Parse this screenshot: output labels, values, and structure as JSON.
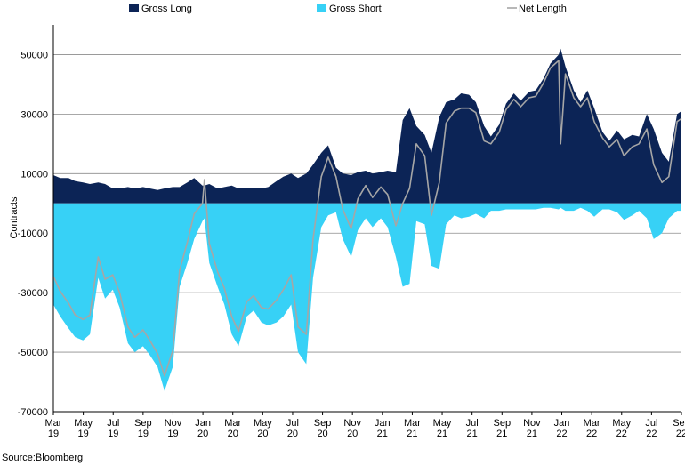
{
  "chart_data": {
    "type": "area",
    "ylabel": "Contracts",
    "ylim": [
      -70000,
      60000
    ],
    "y_ticks": [
      "50000",
      "30000",
      "10000",
      "-10000",
      "-30000",
      "-50000",
      "-70000"
    ],
    "x_tick_labels": [
      [
        "Mar",
        "19"
      ],
      [
        "May",
        "19"
      ],
      [
        "Jul",
        "19"
      ],
      [
        "Sep",
        "19"
      ],
      [
        "Nov",
        "19"
      ],
      [
        "Jan",
        "20"
      ],
      [
        "Mar",
        "20"
      ],
      [
        "May",
        "20"
      ],
      [
        "Jul",
        "20"
      ],
      [
        "Sep",
        "20"
      ],
      [
        "Nov",
        "20"
      ],
      [
        "Jan",
        "21"
      ],
      [
        "Mar",
        "21"
      ],
      [
        "May",
        "21"
      ],
      [
        "Jul",
        "21"
      ],
      [
        "Sep",
        "21"
      ],
      [
        "Nov",
        "21"
      ],
      [
        "Jan",
        "22"
      ],
      [
        "Mar",
        "22"
      ],
      [
        "May",
        "22"
      ],
      [
        "Jul",
        "22"
      ],
      [
        "Sep",
        "22"
      ]
    ],
    "x": [
      "2019-03-01",
      "2019-03-15",
      "2019-04-01",
      "2019-04-15",
      "2019-05-01",
      "2019-05-15",
      "2019-06-01",
      "2019-06-15",
      "2019-07-01",
      "2019-07-15",
      "2019-08-01",
      "2019-08-15",
      "2019-09-01",
      "2019-09-15",
      "2019-10-01",
      "2019-10-15",
      "2019-11-01",
      "2019-11-15",
      "2019-12-01",
      "2019-12-15",
      "2020-01-01",
      "2020-01-05",
      "2020-01-15",
      "2020-02-01",
      "2020-02-15",
      "2020-03-01",
      "2020-03-15",
      "2020-04-01",
      "2020-04-15",
      "2020-05-01",
      "2020-05-15",
      "2020-06-01",
      "2020-06-15",
      "2020-07-01",
      "2020-07-15",
      "2020-08-01",
      "2020-08-15",
      "2020-09-01",
      "2020-09-15",
      "2020-10-01",
      "2020-10-15",
      "2020-11-01",
      "2020-11-15",
      "2020-12-01",
      "2020-12-15",
      "2021-01-01",
      "2021-01-15",
      "2021-02-01",
      "2021-02-15",
      "2021-03-01",
      "2021-03-15",
      "2021-04-01",
      "2021-04-15",
      "2021-05-01",
      "2021-05-15",
      "2021-06-01",
      "2021-06-15",
      "2021-07-01",
      "2021-07-15",
      "2021-08-01",
      "2021-08-15",
      "2021-09-01",
      "2021-09-15",
      "2021-10-01",
      "2021-10-15",
      "2021-11-01",
      "2021-11-15",
      "2021-12-01",
      "2021-12-15",
      "2022-01-01",
      "2022-01-05",
      "2022-01-15",
      "2022-02-01",
      "2022-02-15",
      "2022-03-01",
      "2022-03-15",
      "2022-04-01",
      "2022-04-15",
      "2022-05-01",
      "2022-05-15",
      "2022-06-01",
      "2022-06-15",
      "2022-07-01",
      "2022-07-15",
      "2022-08-01",
      "2022-08-15",
      "2022-09-01",
      "2022-09-10"
    ],
    "series": [
      {
        "name": "Gross Long",
        "color": "#0c2456",
        "values": [
          9500,
          8500,
          8500,
          7500,
          7000,
          6500,
          7000,
          6500,
          5000,
          5000,
          5500,
          5000,
          5500,
          5000,
          4500,
          5000,
          5500,
          5500,
          7000,
          8500,
          6000,
          6000,
          6500,
          5000,
          5500,
          6000,
          5000,
          5000,
          5000,
          5000,
          5500,
          7500,
          9000,
          10000,
          8500,
          10000,
          13000,
          17000,
          19500,
          12000,
          10000,
          9500,
          10500,
          11000,
          10000,
          10500,
          11000,
          10500,
          28000,
          32000,
          26000,
          23000,
          17000,
          29000,
          34000,
          35000,
          37000,
          36500,
          34000,
          26000,
          22500,
          26500,
          33500,
          37000,
          34500,
          37500,
          38000,
          42000,
          47000,
          50000,
          52000,
          46000,
          38000,
          34000,
          38000,
          32000,
          24000,
          21000,
          24500,
          21500,
          23000,
          22500,
          30000,
          25000,
          17000,
          14000,
          30000,
          31000
        ]
      },
      {
        "name": "Gross Short",
        "color": "#37d1f6",
        "values": [
          -34000,
          -38000,
          -42000,
          -45000,
          -46000,
          -44000,
          -25000,
          -32000,
          -29000,
          -35000,
          -47000,
          -50000,
          -48000,
          -51000,
          -55000,
          -63000,
          -55000,
          -28000,
          -20000,
          -12000,
          -6000,
          -5000,
          -20000,
          -28000,
          -34000,
          -44000,
          -48000,
          -38000,
          -36000,
          -40000,
          -41000,
          -40000,
          -38000,
          -34000,
          -50000,
          -54000,
          -25000,
          -8000,
          -4000,
          -3000,
          -12000,
          -18000,
          -9000,
          -5000,
          -8000,
          -5000,
          -8000,
          -18000,
          -28000,
          -27000,
          -6000,
          -7000,
          -21000,
          -22000,
          -7000,
          -4000,
          -5000,
          -4500,
          -3500,
          -5000,
          -2500,
          -2500,
          -2000,
          -2000,
          -2000,
          -2000,
          -2000,
          -1500,
          -1500,
          -2000,
          -1500,
          -2500,
          -2500,
          -1500,
          -2500,
          -4500,
          -2000,
          -2000,
          -3000,
          -5500,
          -4000,
          -2500,
          -5000,
          -12000,
          -10000,
          -5000,
          -2500,
          -2500
        ]
      },
      {
        "name": "Net Length",
        "color": "#a6a6a6",
        "values": [
          -24500,
          -29500,
          -33500,
          -37500,
          -39000,
          -37500,
          -18000,
          -25500,
          -24000,
          -30000,
          -41500,
          -45000,
          -42500,
          -46000,
          -50500,
          -58000,
          -49500,
          -22500,
          -13000,
          -3500,
          0,
          8000,
          -13500,
          -23000,
          -28500,
          -38000,
          -43000,
          -33000,
          -31000,
          -35000,
          -35500,
          -32500,
          -29000,
          -24000,
          -41500,
          -44000,
          -12000,
          9000,
          15500,
          9000,
          -2000,
          -8500,
          1500,
          6000,
          2000,
          5500,
          3000,
          -7500,
          0,
          5000,
          20000,
          16000,
          -4000,
          7000,
          27000,
          31000,
          32000,
          32000,
          30500,
          21000,
          20000,
          24000,
          31500,
          35000,
          32500,
          35500,
          36000,
          40500,
          45500,
          48000,
          20000,
          43500,
          35500,
          32500,
          35500,
          27500,
          22000,
          19000,
          21500,
          16000,
          19000,
          20000,
          25000,
          13000,
          7000,
          9000,
          27500,
          28500
        ]
      }
    ],
    "legend": [
      "Gross Long",
      "Gross Short",
      "Net Length"
    ],
    "legend_position": "top",
    "grid": "horizontal",
    "source": "Source:Bloomberg"
  }
}
